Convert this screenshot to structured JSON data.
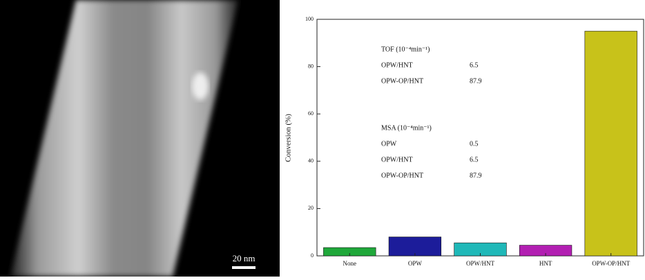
{
  "image_panel": {
    "scale_bar_label": "20 nm"
  },
  "chart_data": {
    "type": "bar",
    "y_label": "Conversion (%)",
    "categories": [
      "None",
      "OPW",
      "OPW/HNT",
      "HNT",
      "OPW-OP/HNT"
    ],
    "values": [
      3.5,
      8,
      5.5,
      4.5,
      95
    ],
    "colors": [
      "#1fa83a",
      "#1c1c9a",
      "#1fb8b8",
      "#b21fb2",
      "#c8c21a"
    ],
    "ylim": [
      0,
      100
    ],
    "yticks": [
      0,
      20,
      40,
      60,
      80,
      100
    ],
    "annotations": [
      {
        "title": "TOF (10⁻⁴min⁻¹)",
        "rows": [
          [
            "OPW/HNT",
            "6.5"
          ],
          [
            "OPW-OP/HNT",
            "87.9"
          ]
        ]
      },
      {
        "title": "MSA (10⁻⁴min⁻¹)",
        "rows": [
          [
            "OPW",
            "0.5"
          ],
          [
            "OPW/HNT",
            "6.5"
          ],
          [
            "OPW-OP/HNT",
            "87.9"
          ]
        ]
      }
    ]
  }
}
